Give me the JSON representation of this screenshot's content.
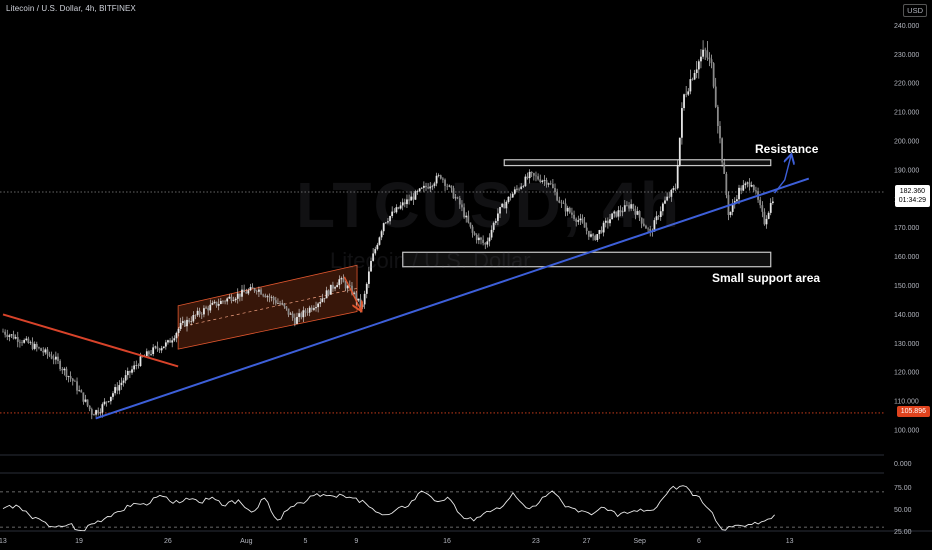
{
  "header": {
    "title": "Litecoin / U.S. Dollar, 4h, BITFINEX",
    "currency": "USD"
  },
  "watermark": {
    "symbol": "LTCUSD, 4h",
    "name": "Litecoin / U.S. Dollar"
  },
  "annotations": {
    "resistance": "Resistance",
    "support": "Small support area"
  },
  "price_tags": {
    "current_price": "182.360",
    "countdown": "01:34:29",
    "low_level": "105.896"
  },
  "colors": {
    "background": "#000000",
    "candle": "#e6e6e6",
    "trendline_blue": "#3d5fd9",
    "trendline_red": "#d8432a",
    "channel_fill": "#4a1e0c",
    "channel_edge": "#e0562e",
    "low_line": "#e0431e",
    "box": "#c8c8c8",
    "grid_text": "#b2b5be"
  },
  "chart_data": [
    {
      "type": "candlestick",
      "title": "Litecoin / U.S. Dollar, 4h, BITFINEX",
      "ylim": [
        95,
        243
      ],
      "y_ticks": [
        100,
        110,
        120,
        130,
        140,
        150,
        160,
        170,
        180,
        190,
        200,
        210,
        220,
        230,
        240
      ],
      "y_tick_labels": [
        "100.000",
        "110.000",
        "120.000",
        "130.000",
        "140.000",
        "150.000",
        "160.000",
        "170.000",
        "180.000",
        "190.000",
        "200.000",
        "210.000",
        "220.000",
        "230.000",
        "240.000"
      ],
      "x_ticks": [
        {
          "day": 0,
          "label": "13"
        },
        {
          "day": 6,
          "label": "19"
        },
        {
          "day": 13,
          "label": "26"
        },
        {
          "day": 19,
          "label": "Aug"
        },
        {
          "day": 24,
          "label": "5"
        },
        {
          "day": 28,
          "label": "9"
        },
        {
          "day": 35,
          "label": "16"
        },
        {
          "day": 42,
          "label": "23"
        },
        {
          "day": 46,
          "label": "27"
        },
        {
          "day": 50,
          "label": "Sep"
        },
        {
          "day": 55,
          "label": "6"
        },
        {
          "day": 62,
          "label": "13"
        }
      ],
      "price_path": [
        {
          "day": 0,
          "price": 134
        },
        {
          "day": 2,
          "price": 130
        },
        {
          "day": 4,
          "price": 125
        },
        {
          "day": 5.5,
          "price": 117
        },
        {
          "day": 7,
          "price": 106
        },
        {
          "day": 7.6,
          "price": 107
        },
        {
          "day": 8.5,
          "price": 112
        },
        {
          "day": 10,
          "price": 120
        },
        {
          "day": 11,
          "price": 125
        },
        {
          "day": 12,
          "price": 128
        },
        {
          "day": 13,
          "price": 130
        },
        {
          "day": 14,
          "price": 136
        },
        {
          "day": 16,
          "price": 142
        },
        {
          "day": 18,
          "price": 146
        },
        {
          "day": 20,
          "price": 149
        },
        {
          "day": 22,
          "price": 143
        },
        {
          "day": 23,
          "price": 138
        },
        {
          "day": 25,
          "price": 145
        },
        {
          "day": 26.5,
          "price": 152
        },
        {
          "day": 27.5,
          "price": 148
        },
        {
          "day": 28.3,
          "price": 142
        },
        {
          "day": 29,
          "price": 158
        },
        {
          "day": 30,
          "price": 172
        },
        {
          "day": 31.5,
          "price": 178
        },
        {
          "day": 33,
          "price": 183
        },
        {
          "day": 34.5,
          "price": 188
        },
        {
          "day": 36,
          "price": 178
        },
        {
          "day": 37,
          "price": 168
        },
        {
          "day": 38,
          "price": 164
        },
        {
          "day": 39,
          "price": 175
        },
        {
          "day": 40,
          "price": 181
        },
        {
          "day": 41.5,
          "price": 188
        },
        {
          "day": 43,
          "price": 186
        },
        {
          "day": 44,
          "price": 178
        },
        {
          "day": 45.5,
          "price": 172
        },
        {
          "day": 46.5,
          "price": 166
        },
        {
          "day": 48,
          "price": 174
        },
        {
          "day": 49.5,
          "price": 178
        },
        {
          "day": 51,
          "price": 168
        },
        {
          "day": 52,
          "price": 178
        },
        {
          "day": 53,
          "price": 184
        },
        {
          "day": 53.6,
          "price": 215
        },
        {
          "day": 54.5,
          "price": 225
        },
        {
          "day": 55.3,
          "price": 231
        },
        {
          "day": 55.9,
          "price": 225
        },
        {
          "day": 56.6,
          "price": 196
        },
        {
          "day": 57.2,
          "price": 174
        },
        {
          "day": 58,
          "price": 183
        },
        {
          "day": 59,
          "price": 186
        },
        {
          "day": 60,
          "price": 172
        },
        {
          "day": 60.8,
          "price": 182
        }
      ],
      "lines": [
        {
          "name": "rising-trendline",
          "color": "#3d5fd9",
          "from": {
            "day": 7.3,
            "price": 104
          },
          "to": {
            "day": 63.5,
            "price": 187
          }
        },
        {
          "name": "falling-trendline",
          "color": "#d8432a",
          "from": {
            "day": 0,
            "price": 140
          },
          "to": {
            "day": 13.8,
            "price": 122
          }
        }
      ],
      "channel": {
        "color": "#4a1e0c",
        "upper": [
          {
            "day": 13.8,
            "price": 143
          },
          {
            "day": 27.9,
            "price": 157
          }
        ],
        "lower": [
          {
            "day": 13.8,
            "price": 128
          },
          {
            "day": 27.9,
            "price": 141
          }
        ]
      },
      "boxes": [
        {
          "name": "resistance-box",
          "days": [
            39.5,
            60.5
          ],
          "prices": [
            191.5,
            193.5
          ]
        },
        {
          "name": "support-box",
          "days": [
            31.5,
            60.5
          ],
          "prices": [
            156.5,
            161.5
          ]
        }
      ],
      "horizontal_levels": [
        {
          "name": "low-level",
          "price": 105.896,
          "color": "#e0431e"
        },
        {
          "name": "current-price",
          "price": 182.36,
          "color": "#888888"
        }
      ]
    },
    {
      "type": "line",
      "title": "",
      "indicator_value": "0.000",
      "ylim": [
        22,
        82
      ],
      "y_ticks": [
        25,
        50,
        75
      ],
      "y_tick_labels": [
        "25.00",
        "50.00",
        "75.00"
      ],
      "bands": [
        30,
        70
      ],
      "values": [
        51,
        55,
        44,
        37,
        30,
        33,
        26,
        34,
        42,
        48,
        57,
        55,
        66,
        57,
        63,
        58,
        64,
        54,
        61,
        47,
        63,
        38,
        53,
        57,
        68,
        66,
        66,
        63,
        53,
        44,
        49,
        54,
        71,
        60,
        64,
        44,
        37,
        48,
        51,
        69,
        52,
        58,
        71,
        53,
        47,
        44,
        52,
        42,
        47,
        48,
        53,
        73,
        77,
        66,
        50,
        27,
        32,
        33,
        36,
        44
      ],
      "x_range": [
        0,
        60.8
      ]
    }
  ]
}
